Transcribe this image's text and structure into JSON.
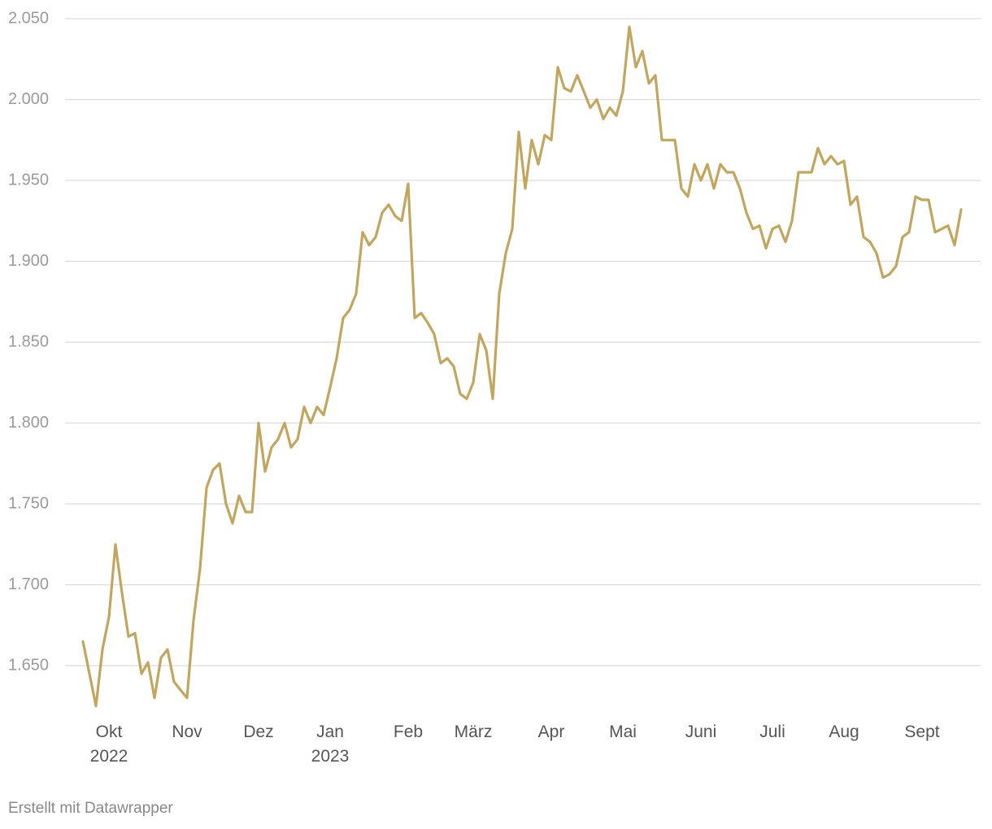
{
  "chart_data": {
    "type": "line",
    "categories": [
      null,
      null,
      null,
      null,
      "Okt\n2022",
      null,
      null,
      null,
      null,
      null,
      null,
      null,
      null,
      null,
      null,
      null,
      "Nov",
      null,
      null,
      null,
      null,
      null,
      null,
      null,
      null,
      null,
      null,
      "Dez",
      null,
      null,
      null,
      null,
      null,
      null,
      null,
      null,
      null,
      null,
      "Jan\n2023",
      null,
      null,
      null,
      null,
      null,
      null,
      null,
      null,
      null,
      null,
      null,
      "Feb",
      null,
      null,
      null,
      null,
      null,
      null,
      null,
      null,
      null,
      "März",
      null,
      null,
      null,
      null,
      null,
      null,
      null,
      null,
      null,
      null,
      null,
      "Apr",
      null,
      null,
      null,
      null,
      null,
      null,
      null,
      null,
      null,
      null,
      "Mai",
      null,
      null,
      null,
      null,
      null,
      null,
      null,
      null,
      null,
      null,
      null,
      "Juni",
      null,
      null,
      null,
      null,
      null,
      null,
      null,
      null,
      null,
      null,
      "Juli",
      null,
      null,
      null,
      null,
      null,
      null,
      null,
      null,
      null,
      null,
      "Aug",
      null,
      null,
      null,
      null,
      null,
      null,
      null,
      null,
      null,
      null,
      null,
      "Sept",
      null,
      null,
      null,
      null,
      null,
      null
    ],
    "values": [
      1665,
      1645,
      1625,
      1660,
      1680,
      1725,
      1695,
      1668,
      1670,
      1645,
      1652,
      1630,
      1655,
      1660,
      1640,
      1635,
      1630,
      1678,
      1710,
      1760,
      1771,
      1775,
      1750,
      1738,
      1755,
      1745,
      1745,
      1800,
      1770,
      1785,
      1790,
      1800,
      1785,
      1790,
      1810,
      1800,
      1810,
      1805,
      1822,
      1840,
      1865,
      1870,
      1880,
      1918,
      1910,
      1915,
      1930,
      1935,
      1928,
      1925,
      1948,
      1865,
      1868,
      1862,
      1855,
      1837,
      1840,
      1835,
      1818,
      1815,
      1825,
      1855,
      1845,
      1815,
      1880,
      1905,
      1920,
      1980,
      1945,
      1975,
      1960,
      1978,
      1975,
      2020,
      2007,
      2005,
      2015,
      2005,
      1995,
      2000,
      1988,
      1995,
      1990,
      2005,
      2045,
      2020,
      2030,
      2010,
      2015,
      1975,
      1975,
      1975,
      1945,
      1940,
      1960,
      1950,
      1960,
      1945,
      1960,
      1955,
      1955,
      1945,
      1930,
      1920,
      1922,
      1908,
      1920,
      1922,
      1912,
      1925,
      1955,
      1955,
      1955,
      1970,
      1960,
      1965,
      1960,
      1962,
      1935,
      1940,
      1915,
      1912,
      1905,
      1890,
      1892,
      1897,
      1915,
      1918,
      1940,
      1938,
      1938,
      1918,
      1920,
      1922,
      1910,
      1932
    ],
    "color": "#c2a65e",
    "ylim": [
      1620,
      2050
    ],
    "yticks": [
      {
        "value": 1650,
        "label": "1.650"
      },
      {
        "value": 1700,
        "label": "1.700"
      },
      {
        "value": 1750,
        "label": "1.750"
      },
      {
        "value": 1800,
        "label": "1.800"
      },
      {
        "value": 1850,
        "label": "1.850"
      },
      {
        "value": 1900,
        "label": "1.900"
      },
      {
        "value": 1950,
        "label": "1.950"
      },
      {
        "value": 2000,
        "label": "2.000"
      },
      {
        "value": 2050,
        "label": "2.050"
      }
    ],
    "grid": true
  },
  "footer": "Erstellt mit Datawrapper"
}
